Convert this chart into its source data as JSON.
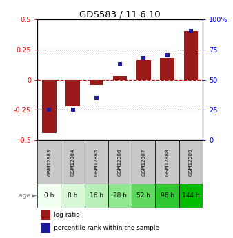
{
  "title": "GDS583 / 11.6.10",
  "samples": [
    "GSM12883",
    "GSM12884",
    "GSM12885",
    "GSM12886",
    "GSM12887",
    "GSM12888",
    "GSM12889"
  ],
  "ages": [
    "0 h",
    "8 h",
    "16 h",
    "28 h",
    "52 h",
    "96 h",
    "144 h"
  ],
  "log_ratio": [
    -0.44,
    -0.22,
    -0.04,
    0.03,
    0.16,
    0.18,
    0.4
  ],
  "percentile_rank": [
    25,
    25,
    35,
    63,
    68,
    70,
    90
  ],
  "ylim": [
    -0.5,
    0.5
  ],
  "yticks_left": [
    -0.5,
    -0.25,
    0,
    0.25,
    0.5
  ],
  "yticks_right": [
    0,
    25,
    50,
    75,
    100
  ],
  "bar_color": "#9B1A1A",
  "dot_color": "#1A1A9B",
  "zero_line_color": "#CC0000",
  "grid_color": "#000000",
  "age_colors": [
    "#F0FFF0",
    "#D8F8D8",
    "#B8F0B8",
    "#90E890",
    "#60D860",
    "#30C830",
    "#00BB00"
  ],
  "sample_bg": "#C8C8C8",
  "legend_bar_label": "log ratio",
  "legend_dot_label": "percentile rank within the sample",
  "bar_width": 0.6
}
